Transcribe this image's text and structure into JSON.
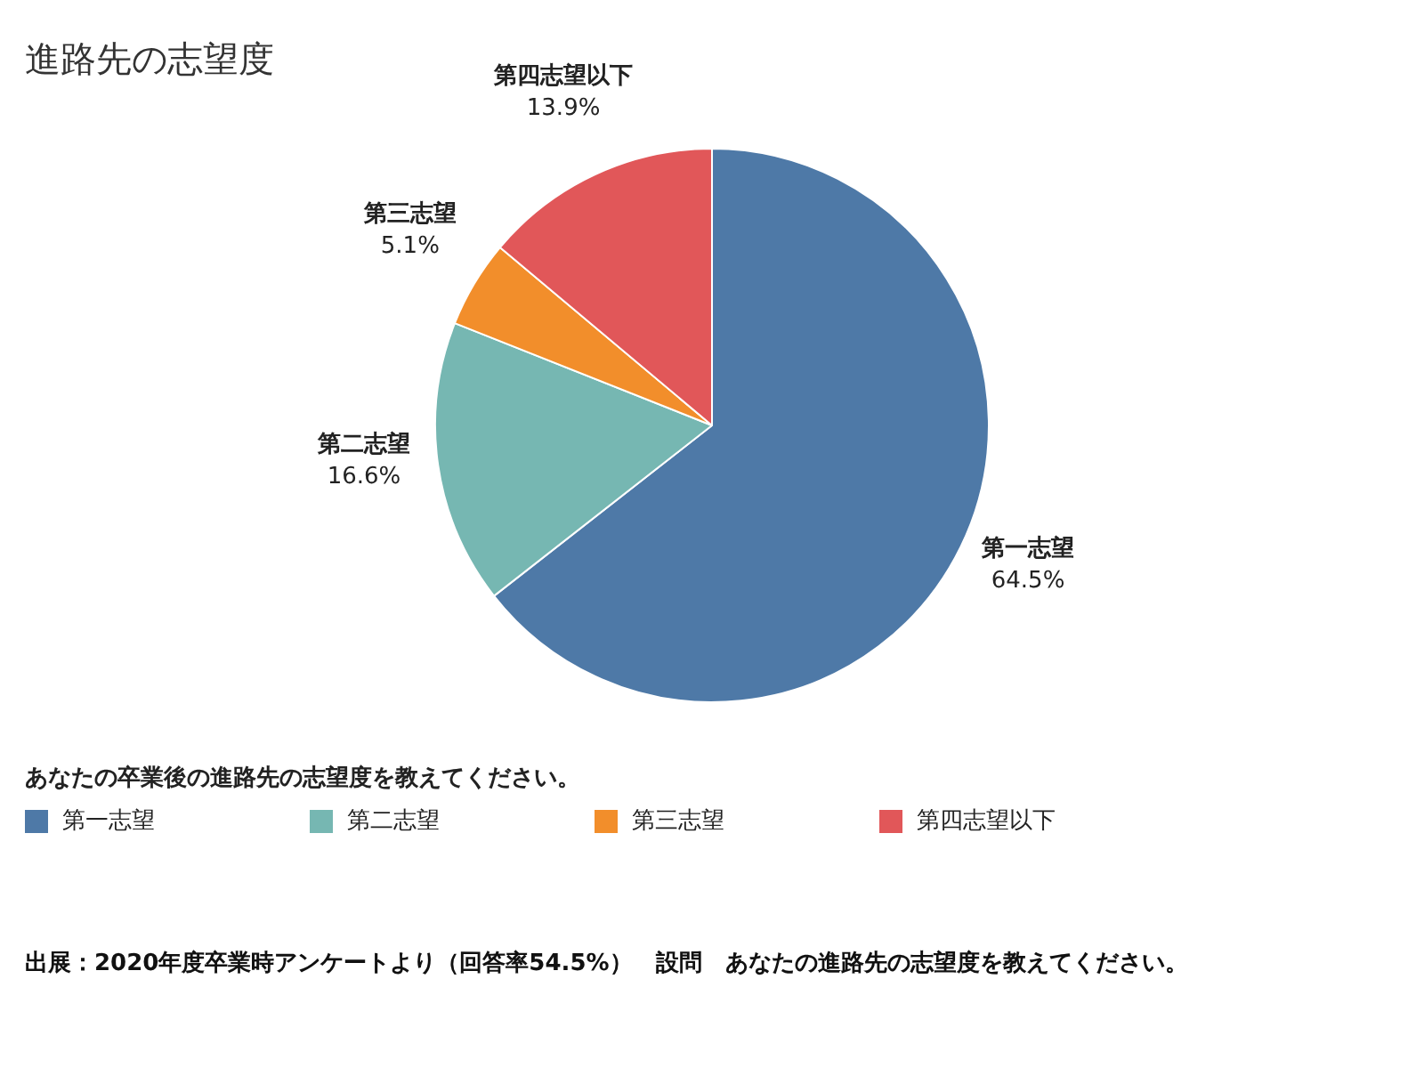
{
  "chart_data": {
    "type": "pie",
    "title": "進路先の志望度",
    "categories": [
      "第一志望",
      "第二志望",
      "第三志望",
      "第四志望以下"
    ],
    "values": [
      64.5,
      16.6,
      5.1,
      13.9
    ],
    "value_labels": [
      "64.5%",
      "16.6%",
      "5.1%",
      "13.9%"
    ],
    "colors": [
      "#4e79a7",
      "#76b7b2",
      "#f28e2b",
      "#e15759"
    ],
    "legend": "bottom",
    "legend_title": "あなたの卒業後の進路先の志望度を教えてください。",
    "annotations": [
      "出展：2020年度卒業時アンケートより（回答率54.5%）　設問　あなたの進路先の志望度を教えてください。"
    ]
  }
}
